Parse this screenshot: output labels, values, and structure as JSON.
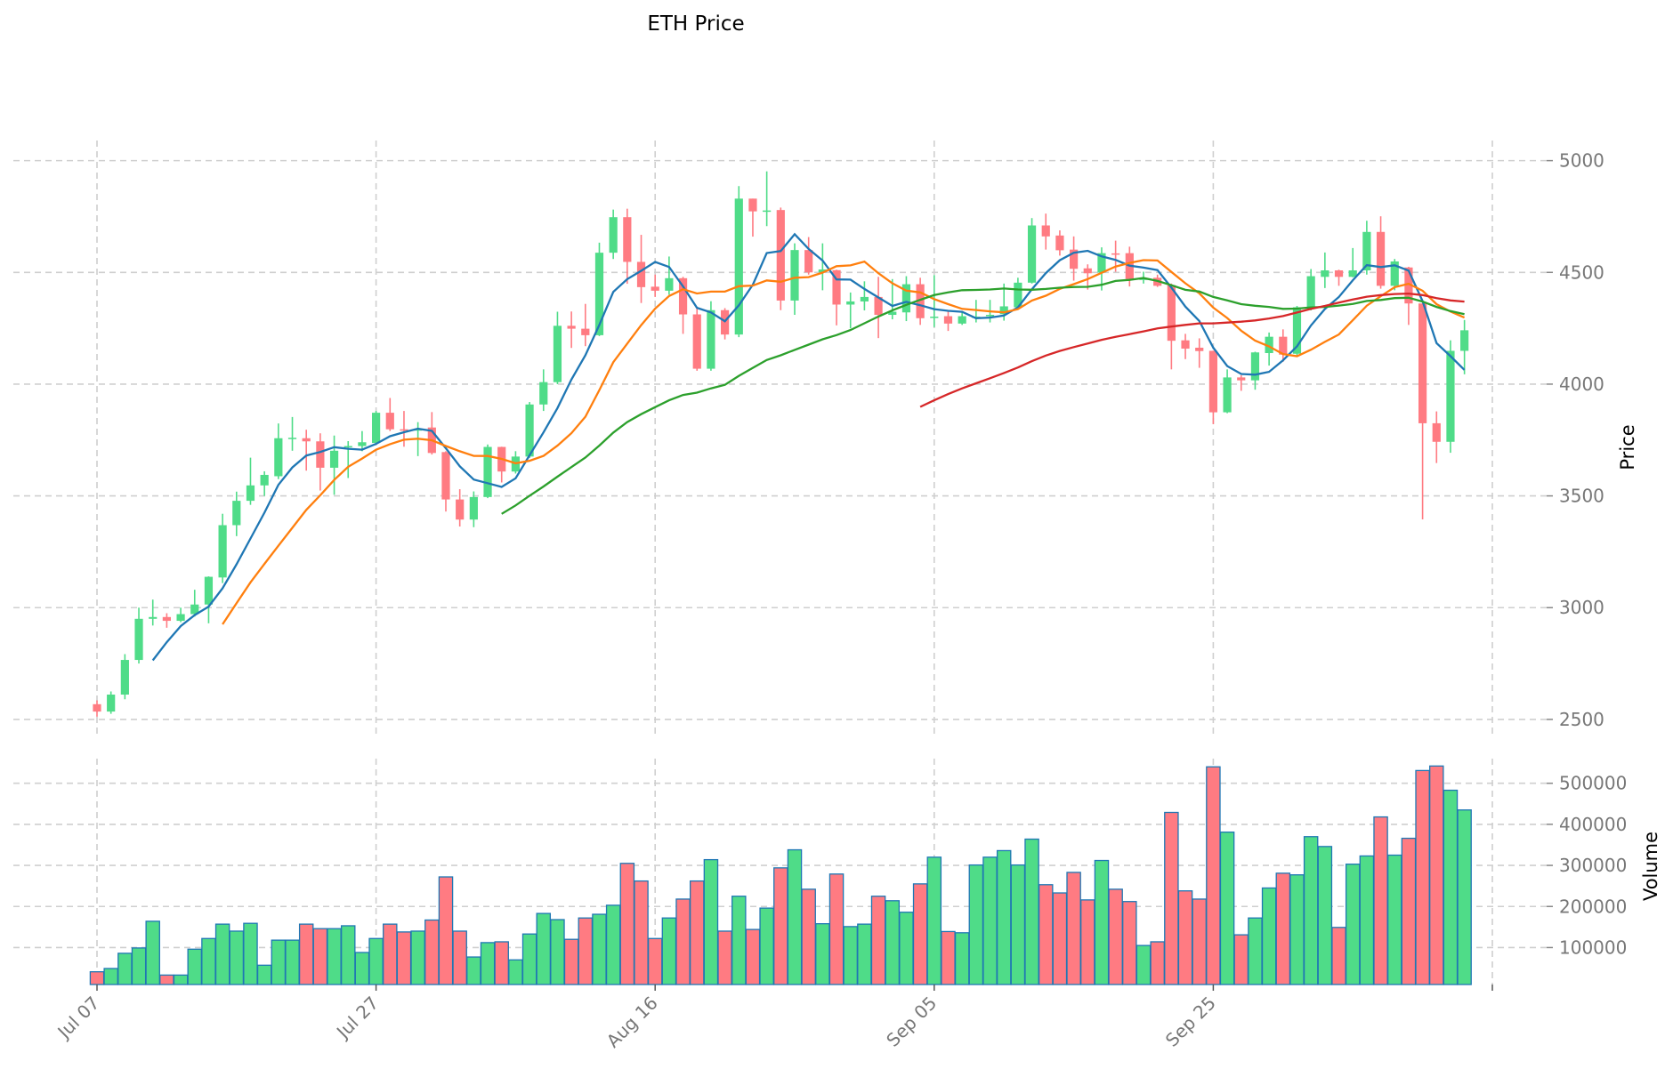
{
  "chart_data": {
    "type": "candlestick",
    "title": "ETH Price",
    "ylabel_price": "Price",
    "ylabel_volume": "Volume",
    "xlabel": "",
    "ylim_price": [
      2420,
      5090
    ],
    "ylim_volume": [
      10000,
      560000
    ],
    "grid": true,
    "xticks": [
      {
        "index": 0,
        "label": "Jul 07"
      },
      {
        "index": 20,
        "label": "Jul 27"
      },
      {
        "index": 40,
        "label": "Aug 16"
      },
      {
        "index": 60,
        "label": "Sep 05"
      },
      {
        "index": 80,
        "label": "Sep 25"
      },
      {
        "index": 100,
        "label": ""
      }
    ],
    "yticks_price": [
      {
        "value": 2500,
        "label": "2500"
      },
      {
        "value": 3000,
        "label": "3000"
      },
      {
        "value": 3500,
        "label": "3500"
      },
      {
        "value": 4000,
        "label": "4000"
      },
      {
        "value": 4500,
        "label": "4500"
      },
      {
        "value": 5000,
        "label": "5000"
      }
    ],
    "yticks_volume": [
      {
        "value": 100000,
        "label": "100000"
      },
      {
        "value": 200000,
        "label": "200000"
      },
      {
        "value": 300000,
        "label": "300000"
      },
      {
        "value": 400000,
        "label": "400000"
      },
      {
        "value": 500000,
        "label": "500000"
      }
    ],
    "colors": {
      "up": "#4fdc88",
      "down": "#ff7b82",
      "volume_edge": "#1f77b4"
    },
    "moving_averages": [
      {
        "period": 5,
        "color": "#1f77b4"
      },
      {
        "period": 10,
        "color": "#ff7f0e"
      },
      {
        "period": 30,
        "color": "#2ca02c"
      },
      {
        "period": 60,
        "color": "#d62728"
      }
    ],
    "open": [
      2568,
      2535,
      2611,
      2766,
      2950,
      2958,
      2941,
      2971,
      3014,
      3135,
      3369,
      3478,
      3547,
      3588,
      3758,
      3758,
      3744,
      3626,
      3720,
      3723,
      3737,
      3872,
      3798,
      3792,
      3806,
      3696,
      3484,
      3394,
      3495,
      3719,
      3609,
      3676,
      3909,
      4009,
      4261,
      4248,
      4219,
      4588,
      4747,
      4547,
      4436,
      4418,
      4474,
      4312,
      4069,
      4331,
      4222,
      4830,
      4774,
      4779,
      4374,
      4600,
      4500,
      4510,
      4356,
      4370,
      4390,
      4310,
      4321,
      4447,
      4300,
      4304,
      4271,
      4298,
      4306,
      4313,
      4344,
      4454,
      4710,
      4665,
      4602,
      4518,
      4499,
      4585,
      4586,
      4470,
      4476,
      4443,
      4196,
      4163,
      4149,
      3874,
      4030,
      4017,
      4139,
      4212,
      4136,
      4344,
      4480,
      4509,
      4480,
      4509,
      4681,
      4440,
      4522,
      4361,
      3825,
      3742,
      4149
    ],
    "high": [
      2585,
      2625,
      2792,
      3000,
      3036,
      2975,
      3000,
      3080,
      3140,
      3420,
      3519,
      3671,
      3610,
      3824,
      3853,
      3796,
      3780,
      3770,
      3745,
      3790,
      3880,
      3938,
      3880,
      3830,
      3875,
      3700,
      3530,
      3520,
      3730,
      3720,
      3700,
      3920,
      4066,
      4324,
      4325,
      4359,
      4633,
      4781,
      4785,
      4668,
      4490,
      4571,
      4480,
      4340,
      4371,
      4340,
      4886,
      4830,
      4952,
      4790,
      4630,
      4658,
      4630,
      4512,
      4410,
      4460,
      4480,
      4470,
      4483,
      4476,
      4488,
      4324,
      4324,
      4377,
      4377,
      4450,
      4476,
      4743,
      4763,
      4688,
      4661,
      4536,
      4612,
      4642,
      4615,
      4503,
      4490,
      4450,
      4225,
      4205,
      4150,
      4066,
      4040,
      4145,
      4231,
      4245,
      4350,
      4515,
      4589,
      4512,
      4609,
      4731,
      4751,
      4560,
      4525,
      4361,
      3878,
      4196,
      4287
    ],
    "low": [
      2512,
      2525,
      2590,
      2750,
      2920,
      2910,
      2935,
      2960,
      2930,
      3110,
      3320,
      3460,
      3500,
      3575,
      3702,
      3613,
      3524,
      3505,
      3580,
      3700,
      3735,
      3790,
      3720,
      3678,
      3685,
      3430,
      3363,
      3360,
      3490,
      3560,
      3600,
      3670,
      3880,
      4000,
      4162,
      4170,
      4215,
      4560,
      4449,
      4363,
      4390,
      4400,
      4225,
      4060,
      4060,
      4200,
      4210,
      4660,
      4707,
      4331,
      4310,
      4490,
      4420,
      4263,
      4250,
      4330,
      4206,
      4290,
      4282,
      4265,
      4255,
      4238,
      4265,
      4276,
      4276,
      4284,
      4335,
      4450,
      4602,
      4575,
      4463,
      4423,
      4419,
      4503,
      4437,
      4450,
      4435,
      4066,
      4112,
      4073,
      3821,
      3870,
      3970,
      3975,
      4083,
      4100,
      4125,
      4330,
      4430,
      4440,
      4478,
      4490,
      4427,
      4420,
      4265,
      3395,
      3647,
      3693,
      4044
    ],
    "close": [
      2535,
      2611,
      2766,
      2950,
      2958,
      2941,
      2971,
      3014,
      3138,
      3369,
      3478,
      3547,
      3594,
      3758,
      3760,
      3744,
      3626,
      3702,
      3723,
      3740,
      3872,
      3798,
      3792,
      3801,
      3692,
      3484,
      3394,
      3495,
      3719,
      3609,
      3676,
      3909,
      4009,
      4261,
      4248,
      4219,
      4588,
      4747,
      4547,
      4434,
      4418,
      4474,
      4312,
      4069,
      4331,
      4222,
      4830,
      4773,
      4777,
      4374,
      4600,
      4500,
      4513,
      4356,
      4370,
      4390,
      4310,
      4324,
      4447,
      4295,
      4302,
      4271,
      4304,
      4302,
      4310,
      4348,
      4454,
      4710,
      4661,
      4599,
      4516,
      4496,
      4586,
      4583,
      4470,
      4472,
      4440,
      4194,
      4159,
      4148,
      3874,
      4030,
      4017,
      4142,
      4212,
      4132,
      4344,
      4483,
      4509,
      4480,
      4509,
      4681,
      4440,
      4549,
      4361,
      3825,
      3742,
      4149,
      4241
    ],
    "volume": [
      41000,
      49000,
      86000,
      99000,
      164000,
      33000,
      33000,
      96000,
      122000,
      157000,
      140000,
      159000,
      57000,
      118000,
      118000,
      157000,
      146000,
      146000,
      153000,
      88000,
      122000,
      157000,
      138000,
      140000,
      167000,
      272000,
      140000,
      77000,
      112000,
      114000,
      70000,
      133000,
      183000,
      168000,
      120000,
      172000,
      181000,
      203000,
      305000,
      262000,
      122000,
      172000,
      218000,
      262000,
      314000,
      140000,
      225000,
      144000,
      196000,
      294000,
      338000,
      242000,
      158000,
      279000,
      151000,
      157000,
      225000,
      214000,
      186000,
      255000,
      320000,
      139000,
      136000,
      301000,
      320000,
      336000,
      301000,
      364000,
      253000,
      233000,
      283000,
      216000,
      312000,
      242000,
      212000,
      105000,
      114000,
      429000,
      238000,
      218000,
      540000,
      381000,
      131000,
      172000,
      245000,
      281000,
      277000,
      370000,
      346000,
      149000,
      303000,
      323000,
      418000,
      325000,
      366000,
      531000,
      542000,
      483000,
      435000
    ]
  }
}
